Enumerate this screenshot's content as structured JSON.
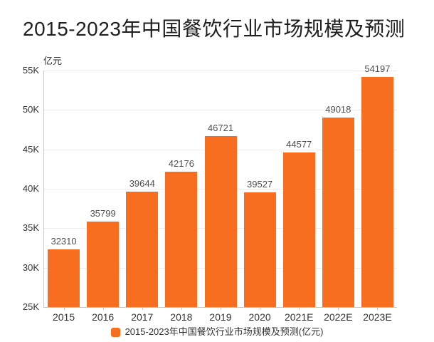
{
  "title": "2015-2023年中国餐饮行业市场规模及预测",
  "unit_label": "亿元",
  "legend": {
    "label": "2015-2023年中国餐饮行业市场规模及预测(亿元)",
    "swatch_color": "#F86E21"
  },
  "colors": {
    "bar": "#F86E21",
    "grid": "#ededed",
    "axis": "#c9c9c9",
    "title_text": "#1f1f1f",
    "axis_text": "#333333",
    "value_text": "#4f4f4f",
    "background": "#ffffff"
  },
  "chart_data": {
    "type": "bar",
    "title": "2015-2023年中国餐饮行业市场规模及预测",
    "ylabel": "亿元",
    "xlabel": "",
    "categories": [
      "2015",
      "2016",
      "2017",
      "2018",
      "2019",
      "2020",
      "2021E",
      "2022E",
      "2023E"
    ],
    "values": [
      32310,
      35799,
      39644,
      42176,
      46721,
      39527,
      44577,
      49018,
      54197
    ],
    "y_tick_labels": [
      "55K",
      "50K",
      "45K",
      "40K",
      "35K",
      "30K",
      "25K"
    ],
    "ylim": [
      25000,
      55000
    ],
    "grid": true,
    "legend_position": "bottom",
    "legend_label": "2015-2023年中国餐饮行业市场规模及预测(亿元)",
    "bar_color": "#F86E21"
  }
}
